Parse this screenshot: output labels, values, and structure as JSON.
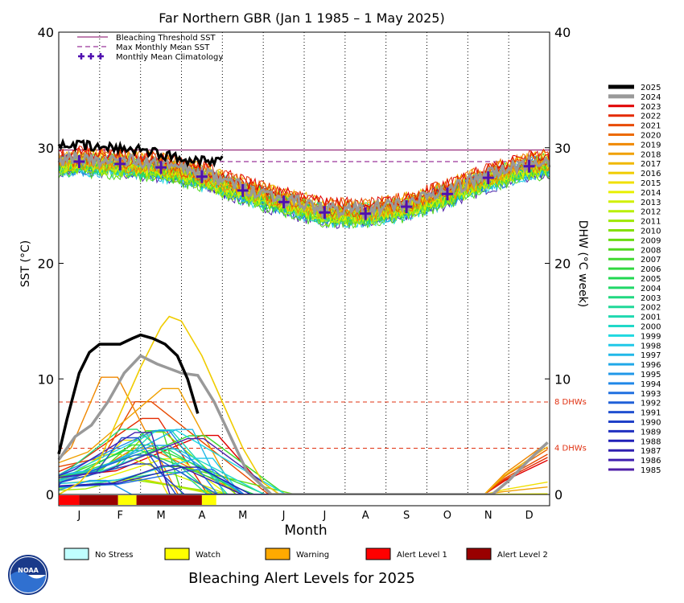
{
  "chart_data": {
    "type": "line",
    "title": "Far Northern GBR      (Jan 1 1985 – 1 May 2025)",
    "xlabel": "Month",
    "ylabel_left": "SST (°C)",
    "ylabel_right": "DHW (°C week)",
    "ylim": [
      0,
      40
    ],
    "yticks": [
      0,
      10,
      20,
      30,
      40
    ],
    "months": [
      "J",
      "F",
      "M",
      "A",
      "M",
      "J",
      "J",
      "A",
      "S",
      "O",
      "N",
      "D"
    ],
    "bleaching_threshold_sst": 29.8,
    "max_monthly_mean_sst": 28.8,
    "dhw_threshold_labels": [
      "8 DHWs",
      "4 DHWs"
    ],
    "dhw_thresholds": [
      8,
      4
    ],
    "legend_lines": [
      "Bleaching Threshold SST",
      "Max Monthly Mean SST",
      "Monthly Mean Climatology"
    ],
    "climatology": [
      28.8,
      28.6,
      28.3,
      27.5,
      26.3,
      25.3,
      24.4,
      24.3,
      24.9,
      26.0,
      27.4,
      28.4
    ],
    "years": [
      "2025",
      "2024",
      "2023",
      "2022",
      "2021",
      "2020",
      "2019",
      "2018",
      "2017",
      "2016",
      "2015",
      "2014",
      "2013",
      "2012",
      "2011",
      "2010",
      "2009",
      "2008",
      "2007",
      "2006",
      "2005",
      "2004",
      "2003",
      "2002",
      "2001",
      "2000",
      "1999",
      "1998",
      "1997",
      "1996",
      "1995",
      "1994",
      "1993",
      "1992",
      "1991",
      "1990",
      "1989",
      "1988",
      "1987",
      "1986",
      "1985"
    ],
    "year_colors": [
      "#000000",
      "#999999",
      "#e00000",
      "#e42a00",
      "#e84a00",
      "#ec6a00",
      "#f08800",
      "#f0a000",
      "#f0b800",
      "#f0cc00",
      "#f0e000",
      "#e8f000",
      "#d0f000",
      "#b8f000",
      "#9ee800",
      "#84e000",
      "#68dc10",
      "#50d820",
      "#40d830",
      "#30d840",
      "#20d850",
      "#20d868",
      "#20d880",
      "#20d898",
      "#20d8b0",
      "#20d8c8",
      "#20d8e0",
      "#20c8e8",
      "#20b8e8",
      "#20a8e8",
      "#2098e8",
      "#2088e8",
      "#2070e0",
      "#2060d8",
      "#2050d0",
      "#2040c8",
      "#2030c0",
      "#2020b8",
      "#3020b0",
      "#4020b0",
      "#5020a8"
    ],
    "sst_2025_monthly": [
      30.4,
      30.0,
      29.9,
      29.0
    ],
    "dhw_2025": [
      [
        0,
        3.5
      ],
      [
        0.2,
        6.5
      ],
      [
        0.5,
        10.5
      ],
      [
        0.75,
        12.3
      ],
      [
        1.0,
        13.0
      ],
      [
        1.5,
        13.0
      ],
      [
        1.8,
        13.5
      ],
      [
        2.0,
        13.8
      ],
      [
        2.3,
        13.5
      ],
      [
        2.6,
        13.0
      ],
      [
        2.9,
        12.0
      ],
      [
        3.15,
        10.0
      ],
      [
        3.4,
        7.0
      ]
    ],
    "dhw_2024": [
      [
        0,
        3.0
      ],
      [
        0.4,
        5.0
      ],
      [
        0.8,
        6.0
      ],
      [
        1.2,
        8.0
      ],
      [
        1.6,
        10.5
      ],
      [
        2.0,
        12.0
      ],
      [
        2.4,
        11.3
      ],
      [
        3.0,
        10.5
      ],
      [
        3.4,
        10.3
      ],
      [
        3.8,
        8.0
      ],
      [
        4.2,
        5.0
      ],
      [
        4.6,
        2.0
      ],
      [
        5.2,
        0.0
      ],
      [
        10.6,
        0.0
      ],
      [
        11.0,
        1.2
      ],
      [
        11.5,
        3.0
      ],
      [
        11.95,
        4.5
      ]
    ],
    "dhw_2016": [
      [
        0,
        0
      ],
      [
        0.5,
        1.0
      ],
      [
        1.0,
        3.0
      ],
      [
        1.5,
        7.0
      ],
      [
        2.0,
        11.0
      ],
      [
        2.5,
        14.5
      ],
      [
        2.7,
        15.4
      ],
      [
        3.0,
        15.0
      ],
      [
        3.5,
        12.0
      ],
      [
        4.0,
        8.0
      ],
      [
        4.5,
        4.0
      ],
      [
        5.0,
        1.0
      ],
      [
        5.4,
        0
      ]
    ],
    "alert_bar": [
      "Alert Level 1",
      "Alert Level 2",
      "Alert Level 2",
      "Watch",
      "Alert Level 2",
      "Alert Level 2",
      "Watch"
    ],
    "legend_alert": [
      "No Stress",
      "Watch",
      "Warning",
      "Alert Level 1",
      "Alert Level 2"
    ],
    "alert_colors": [
      "#c0ffff",
      "#ffff00",
      "#ffaa00",
      "#ff0000",
      "#990000"
    ],
    "footer": "Bleaching Alert Levels for 2025",
    "logo_text": "NOAA"
  }
}
